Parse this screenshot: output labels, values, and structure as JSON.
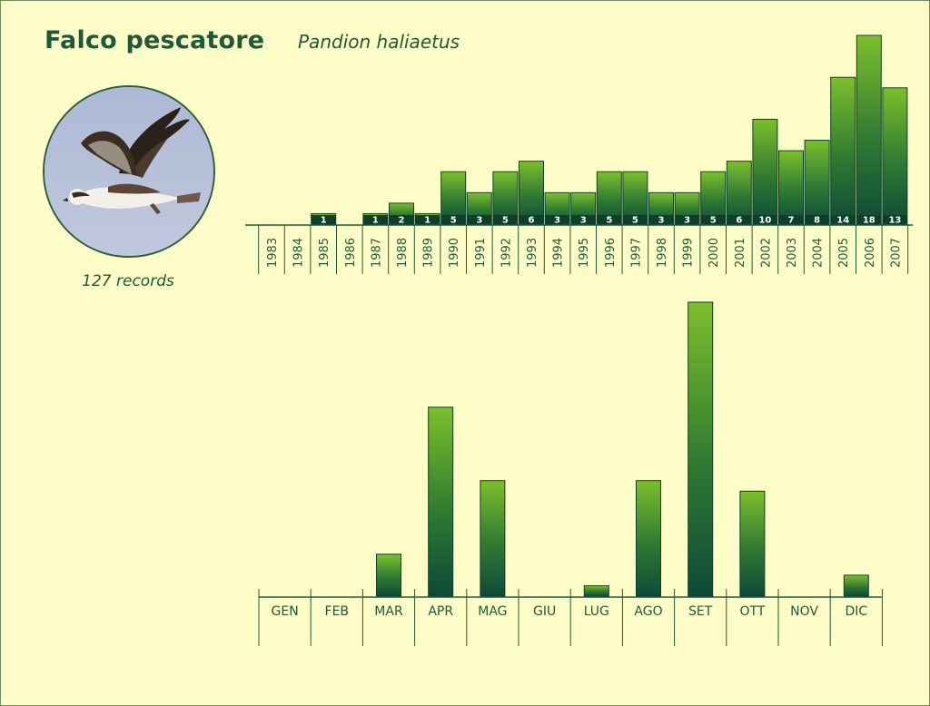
{
  "header": {
    "title": "Falco pescatore",
    "subtitle": "Pandion haliaetus"
  },
  "photo": {
    "icon": "osprey-photo",
    "sky": "#b7c1da"
  },
  "records_label": "127 records",
  "colors": {
    "background": "#fefdc8",
    "bar_top": "#7cbf2c",
    "bar_bottom": "#0e4a38",
    "text": "#1e5a38",
    "axis": "#1e5a38"
  },
  "chart_data": [
    {
      "type": "bar",
      "categories": [
        "1983",
        "1984",
        "1985",
        "1986",
        "1987",
        "1988",
        "1989",
        "1990",
        "1991",
        "1992",
        "1993",
        "1994",
        "1995",
        "1996",
        "1997",
        "1998",
        "1999",
        "2000",
        "2001",
        "2002",
        "2003",
        "2004",
        "2005",
        "2006",
        "2007"
      ],
      "values": [
        0,
        0,
        1,
        0,
        1,
        2,
        1,
        5,
        3,
        5,
        6,
        3,
        3,
        5,
        5,
        3,
        3,
        5,
        6,
        10,
        7,
        8,
        14,
        18,
        13
      ],
      "value_labels": [
        "",
        "",
        "1",
        "",
        "1",
        "2",
        "1",
        "5",
        "3",
        "5",
        "6",
        "3",
        "3",
        "5",
        "5",
        "3",
        "3",
        "5",
        "6",
        "10",
        "7",
        "8",
        "14",
        "18",
        "13"
      ],
      "ylim": [
        0,
        18
      ],
      "grid": false,
      "legend": "none"
    },
    {
      "type": "bar",
      "categories": [
        "GEN",
        "FEB",
        "MAR",
        "APR",
        "MAG",
        "GIU",
        "LUG",
        "AGO",
        "SET",
        "OTT",
        "NOV",
        "DIC"
      ],
      "values": [
        0,
        0,
        8,
        36,
        22,
        0,
        2,
        22,
        56,
        20,
        0,
        4
      ],
      "ylim": [
        0,
        56
      ],
      "grid": false,
      "legend": "none"
    }
  ]
}
